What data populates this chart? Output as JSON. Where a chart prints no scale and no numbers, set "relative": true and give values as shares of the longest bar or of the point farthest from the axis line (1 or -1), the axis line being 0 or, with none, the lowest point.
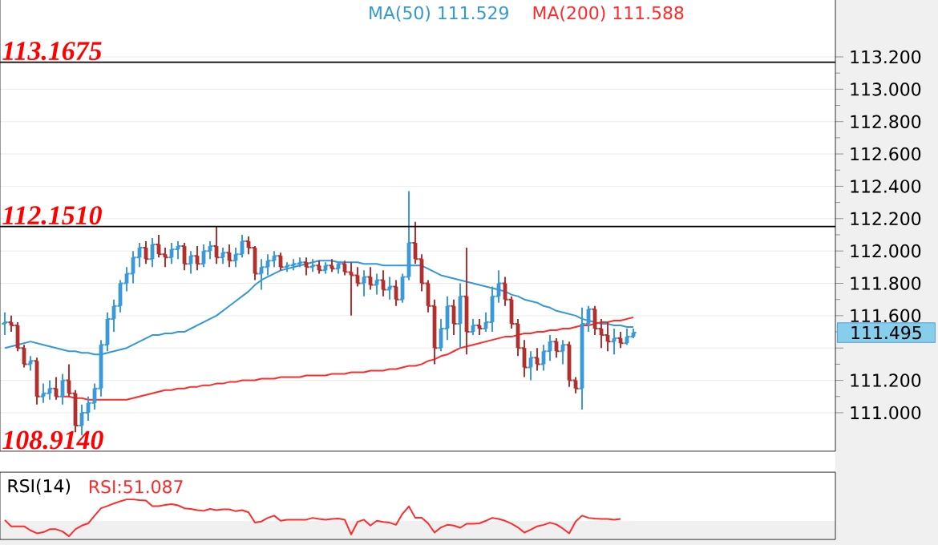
{
  "chart_data": [
    {
      "type": "candlestick",
      "legend": "top",
      "grid": "y",
      "categories": [
        null,
        null,
        null,
        null,
        null,
        null,
        null,
        null,
        null,
        null,
        null,
        null,
        null,
        null,
        null,
        null,
        null,
        null,
        null,
        null,
        null,
        null,
        null,
        null,
        null,
        null,
        null,
        null,
        null,
        null,
        null,
        null,
        null,
        null,
        null,
        null,
        null,
        null,
        null,
        null,
        null,
        null,
        null,
        null,
        null,
        null,
        null,
        null,
        null,
        null,
        null,
        null,
        null,
        null,
        null,
        null,
        null,
        null,
        null,
        null,
        null,
        null,
        null,
        null,
        null,
        null,
        null,
        null,
        null,
        null,
        null,
        null,
        null,
        null,
        null,
        null,
        null,
        null,
        null,
        null,
        null,
        null,
        null,
        null,
        null,
        null,
        null,
        null,
        null,
        null,
        null,
        null,
        null,
        null,
        null,
        null,
        null,
        null,
        null,
        null,
        null,
        null,
        null,
        null,
        null,
        null,
        null,
        null,
        null,
        null,
        null,
        null,
        null,
        null,
        null,
        null,
        null,
        null,
        null,
        null,
        null,
        null,
        null,
        null,
        null,
        null,
        null,
        null,
        null,
        null
      ],
      "ylim": [
        110.762,
        113.557
      ],
      "yticks": [
        {
          "value": 111.0,
          "label": "111.000"
        },
        {
          "value": 111.2,
          "label": "111.200"
        },
        {
          "value": 111.4,
          "label": null
        },
        {
          "value": 111.6,
          "label": "111.600"
        },
        {
          "value": 111.8,
          "label": "111.800"
        },
        {
          "value": 112.0,
          "label": "112.000"
        },
        {
          "value": 112.2,
          "label": "112.200"
        },
        {
          "value": 112.4,
          "label": "112.400"
        },
        {
          "value": 112.6,
          "label": "112.600"
        },
        {
          "value": 112.8,
          "label": "112.800"
        },
        {
          "value": 113.0,
          "label": "113.000"
        },
        {
          "value": 113.2,
          "label": "113.200"
        }
      ],
      "ref_lines": [
        {
          "axis": "y",
          "value": 113.1675,
          "label": "113.1675",
          "color": "#000000"
        },
        {
          "axis": "y",
          "value": 112.151,
          "label": "112.1510",
          "color": "#000000"
        }
      ],
      "annotations": [
        "108.9140",
        "111.495"
      ],
      "ohlc": [
        [
          111.55,
          111.62,
          111.48,
          111.56
        ],
        [
          111.56,
          111.6,
          111.5,
          111.54
        ],
        [
          111.54,
          111.56,
          111.38,
          111.4
        ],
        [
          111.4,
          111.42,
          111.28,
          111.3
        ],
        [
          111.3,
          111.35,
          111.26,
          111.32
        ],
        [
          111.32,
          111.34,
          111.05,
          111.1
        ],
        [
          111.1,
          111.18,
          111.06,
          111.12
        ],
        [
          111.12,
          111.2,
          111.08,
          111.15
        ],
        [
          111.15,
          111.22,
          111.08,
          111.1
        ],
        [
          111.1,
          111.24,
          111.05,
          111.2
        ],
        [
          111.2,
          111.3,
          111.1,
          111.12
        ],
        [
          111.12,
          111.14,
          110.88,
          110.92
        ],
        [
          110.92,
          111.05,
          110.86,
          111.0
        ],
        [
          111.0,
          111.1,
          110.95,
          111.06
        ],
        [
          111.06,
          111.18,
          111.02,
          111.15
        ],
        [
          111.15,
          111.45,
          111.1,
          111.42
        ],
        [
          111.42,
          111.62,
          111.38,
          111.58
        ],
        [
          111.58,
          111.7,
          111.5,
          111.66
        ],
        [
          111.66,
          111.82,
          111.62,
          111.8
        ],
        [
          111.8,
          111.9,
          111.75,
          111.86
        ],
        [
          111.86,
          112.0,
          111.8,
          111.96
        ],
        [
          111.96,
          112.05,
          111.9,
          112.02
        ],
        [
          112.02,
          112.06,
          111.92,
          111.95
        ],
        [
          111.95,
          112.08,
          111.9,
          112.04
        ],
        [
          112.04,
          112.1,
          111.96,
          111.98
        ],
        [
          111.98,
          112.02,
          111.9,
          111.96
        ],
        [
          111.96,
          112.05,
          111.92,
          112.01
        ],
        [
          112.01,
          112.06,
          111.95,
          112.03
        ],
        [
          112.03,
          112.05,
          111.88,
          111.92
        ],
        [
          111.92,
          112.0,
          111.86,
          111.97
        ],
        [
          111.97,
          112.03,
          111.88,
          111.92
        ],
        [
          111.92,
          112.04,
          111.9,
          112.0
        ],
        [
          112.0,
          112.06,
          111.95,
          112.03
        ],
        [
          112.03,
          112.15,
          111.92,
          111.96
        ],
        [
          111.96,
          112.02,
          111.92,
          111.99
        ],
        [
          111.99,
          112.04,
          111.9,
          111.94
        ],
        [
          111.94,
          112.02,
          111.9,
          111.98
        ],
        [
          111.98,
          112.1,
          111.96,
          112.06
        ],
        [
          112.06,
          112.09,
          111.98,
          112.02
        ],
        [
          112.02,
          112.03,
          111.82,
          111.86
        ],
        [
          111.86,
          111.95,
          111.76,
          111.9
        ],
        [
          111.9,
          111.98,
          111.85,
          111.94
        ],
        [
          111.94,
          112.0,
          111.9,
          111.97
        ],
        [
          111.97,
          111.99,
          111.88,
          111.9
        ],
        [
          111.9,
          111.93,
          111.87,
          111.91
        ],
        [
          111.91,
          111.95,
          111.88,
          111.92
        ],
        [
          111.92,
          111.96,
          111.9,
          111.93
        ],
        [
          111.93,
          111.96,
          111.85,
          111.9
        ],
        [
          111.9,
          111.95,
          111.87,
          111.91
        ],
        [
          111.91,
          111.94,
          111.86,
          111.88
        ],
        [
          111.88,
          111.93,
          111.86,
          111.91
        ],
        [
          111.91,
          111.95,
          111.87,
          111.89
        ],
        [
          111.89,
          111.93,
          111.86,
          111.92
        ],
        [
          111.92,
          111.94,
          111.85,
          111.87
        ],
        [
          111.87,
          111.93,
          111.6,
          111.85
        ],
        [
          111.85,
          111.9,
          111.78,
          111.8
        ],
        [
          111.8,
          111.88,
          111.72,
          111.84
        ],
        [
          111.84,
          111.9,
          111.76,
          111.79
        ],
        [
          111.79,
          111.86,
          111.73,
          111.82
        ],
        [
          111.82,
          111.88,
          111.72,
          111.76
        ],
        [
          111.76,
          111.84,
          111.7,
          111.78
        ],
        [
          111.78,
          111.82,
          111.66,
          111.7
        ],
        [
          111.7,
          111.86,
          111.68,
          111.84
        ],
        [
          111.84,
          112.37,
          111.82,
          112.05
        ],
        [
          112.05,
          112.18,
          111.92,
          111.95
        ],
        [
          111.95,
          111.98,
          111.75,
          111.8
        ],
        [
          111.8,
          111.82,
          111.62,
          111.66
        ],
        [
          111.66,
          111.7,
          111.3,
          111.4
        ],
        [
          111.4,
          111.58,
          111.38,
          111.52
        ],
        [
          111.52,
          111.72,
          111.45,
          111.66
        ],
        [
          111.66,
          111.7,
          111.48,
          111.55
        ],
        [
          111.55,
          111.8,
          111.4,
          111.72
        ],
        [
          111.72,
          112.02,
          111.36,
          111.5
        ],
        [
          111.5,
          111.58,
          111.48,
          111.54
        ],
        [
          111.54,
          111.58,
          111.48,
          111.52
        ],
        [
          111.52,
          111.62,
          111.5,
          111.56
        ],
        [
          111.56,
          111.78,
          111.5,
          111.72
        ],
        [
          111.72,
          111.88,
          111.68,
          111.8
        ],
        [
          111.8,
          111.84,
          111.66,
          111.7
        ],
        [
          111.7,
          111.72,
          111.52,
          111.55
        ],
        [
          111.55,
          111.58,
          111.35,
          111.4
        ],
        [
          111.4,
          111.45,
          111.22,
          111.28
        ],
        [
          111.28,
          111.38,
          111.2,
          111.34
        ],
        [
          111.34,
          111.4,
          111.26,
          111.3
        ],
        [
          111.3,
          111.42,
          111.26,
          111.38
        ],
        [
          111.38,
          111.48,
          111.32,
          111.44
        ],
        [
          111.44,
          111.46,
          111.34,
          111.38
        ],
        [
          111.38,
          111.45,
          111.3,
          111.42
        ],
        [
          111.42,
          111.44,
          111.16,
          111.2
        ],
        [
          111.2,
          111.22,
          111.12,
          111.15
        ],
        [
          111.15,
          111.65,
          111.02,
          111.55
        ],
        [
          111.55,
          111.66,
          111.5,
          111.64
        ],
        [
          111.64,
          111.66,
          111.48,
          111.52
        ],
        [
          111.52,
          111.58,
          111.4,
          111.48
        ],
        [
          111.48,
          111.56,
          111.38,
          111.44
        ],
        [
          111.44,
          111.52,
          111.36,
          111.46
        ],
        [
          111.46,
          111.5,
          111.4,
          111.43
        ],
        [
          111.43,
          111.52,
          111.42,
          111.47
        ],
        [
          111.47,
          111.52,
          111.46,
          111.495
        ],
        null,
        null,
        null,
        null,
        null,
        null,
        null,
        null,
        null,
        null,
        null,
        null,
        null,
        null,
        null,
        null,
        null,
        null,
        null,
        null,
        null,
        null,
        null,
        null,
        null,
        null,
        null,
        null,
        null,
        null,
        null
      ],
      "colors": [
        "#3a9ad9",
        "#b0302e",
        "#b0302e",
        "#b0302e",
        "#3a9ad9",
        "#b0302e",
        "#3a9ad9",
        "#3a9ad9",
        "#b0302e",
        "#3a9ad9",
        "#b0302e",
        "#b0302e",
        "#3a9ad9",
        "#3a9ad9",
        "#3a9ad9",
        "#3a9ad9",
        "#3a9ad9",
        "#3a9ad9",
        "#3a9ad9",
        "#3a9ad9",
        "#3a9ad9",
        "#3a9ad9",
        "#b0302e",
        "#3a9ad9",
        "#b0302e",
        "#b0302e",
        "#3a9ad9",
        "#3a9ad9",
        "#b0302e",
        "#3a9ad9",
        "#b0302e",
        "#3a9ad9",
        "#3a9ad9",
        "#b0302e",
        "#3a9ad9",
        "#b0302e",
        "#3a9ad9",
        "#3a9ad9",
        "#b0302e",
        "#b0302e",
        "#3a9ad9",
        "#3a9ad9",
        "#3a9ad9",
        "#b0302e",
        "#3a9ad9",
        "#3a9ad9",
        "#3a9ad9",
        "#b0302e",
        "#3a9ad9",
        "#b0302e",
        "#3a9ad9",
        "#b0302e",
        "#3a9ad9",
        "#b0302e",
        "#b0302e",
        "#b0302e",
        "#3a9ad9",
        "#b0302e",
        "#3a9ad9",
        "#b0302e",
        "#3a9ad9",
        "#b0302e",
        "#3a9ad9",
        "#3a9ad9",
        "#b0302e",
        "#b0302e",
        "#b0302e",
        "#b0302e",
        "#3a9ad9",
        "#3a9ad9",
        "#b0302e",
        "#3a9ad9",
        "#b0302e",
        "#3a9ad9",
        "#b0302e",
        "#3a9ad9",
        "#3a9ad9",
        "#3a9ad9",
        "#b0302e",
        "#b0302e",
        "#b0302e",
        "#b0302e",
        "#3a9ad9",
        "#b0302e",
        "#3a9ad9",
        "#3a9ad9",
        "#b0302e",
        "#3a9ad9",
        "#b0302e",
        "#b0302e",
        "#3a9ad9",
        "#3a9ad9",
        "#b0302e",
        "#b0302e",
        "#b0302e",
        "#3a9ad9",
        "#b0302e",
        "#3a9ad9",
        "#3a9ad9",
        null,
        null,
        null,
        null,
        null,
        null,
        null,
        null,
        null,
        null,
        null,
        null,
        null,
        null,
        null,
        null,
        null,
        null,
        null,
        null,
        null,
        null,
        null,
        null,
        null,
        null,
        null,
        null,
        null,
        null,
        null
      ],
      "series": [
        {
          "name": "MA(50) 111.529",
          "type": "line",
          "color": "#3399d6",
          "values": [
            111.4,
            111.41,
            111.42,
            111.43,
            111.44,
            111.43,
            111.42,
            111.41,
            111.4,
            111.39,
            111.38,
            111.38,
            111.37,
            111.37,
            111.36,
            111.36,
            111.37,
            111.38,
            111.39,
            111.4,
            111.42,
            111.44,
            111.46,
            111.48,
            111.48,
            111.49,
            111.49,
            111.5,
            111.5,
            111.52,
            111.54,
            111.56,
            111.58,
            111.6,
            111.63,
            111.66,
            111.69,
            111.72,
            111.75,
            111.79,
            111.82,
            111.84,
            111.86,
            111.88,
            111.89,
            111.9,
            111.91,
            111.92,
            111.93,
            111.94,
            111.94,
            111.94,
            111.93,
            111.93,
            111.93,
            111.93,
            111.92,
            111.92,
            111.92,
            111.91,
            111.91,
            111.91,
            111.91,
            111.91,
            111.91,
            111.91,
            111.89,
            111.87,
            111.85,
            111.84,
            111.83,
            111.82,
            111.81,
            111.8,
            111.79,
            111.78,
            111.77,
            111.76,
            111.75,
            111.73,
            111.72,
            111.7,
            111.69,
            111.68,
            111.66,
            111.65,
            111.63,
            111.62,
            111.61,
            111.6,
            111.58,
            111.57,
            111.56,
            111.55,
            111.55,
            111.54,
            111.54,
            111.53,
            111.53,
            null,
            null,
            null,
            null,
            null,
            null,
            null,
            null,
            null,
            null,
            null,
            null,
            null,
            null,
            null,
            null,
            null,
            null,
            null,
            null,
            null,
            null,
            null,
            null,
            null,
            null,
            null,
            null,
            null,
            null,
            null
          ]
        },
        {
          "name": "MA(200) 111.588",
          "type": "line",
          "color": "#ff2a2a",
          "values": [
            null,
            null,
            null,
            null,
            null,
            null,
            null,
            null,
            null,
            111.1,
            111.1,
            111.09,
            111.09,
            111.08,
            111.08,
            111.08,
            111.08,
            111.08,
            111.08,
            111.08,
            111.09,
            111.1,
            111.11,
            111.12,
            111.13,
            111.14,
            111.14,
            111.15,
            111.15,
            111.16,
            111.16,
            111.17,
            111.17,
            111.18,
            111.18,
            111.19,
            111.19,
            111.2,
            111.2,
            111.2,
            111.21,
            111.21,
            111.21,
            111.22,
            111.22,
            111.22,
            111.22,
            111.23,
            111.23,
            111.23,
            111.23,
            111.24,
            111.24,
            111.24,
            111.25,
            111.25,
            111.25,
            111.26,
            111.26,
            111.26,
            111.27,
            111.27,
            111.28,
            111.29,
            111.29,
            111.3,
            111.32,
            111.33,
            111.35,
            111.36,
            111.38,
            111.4,
            111.41,
            111.42,
            111.43,
            111.44,
            111.45,
            111.46,
            111.47,
            111.47,
            111.48,
            111.49,
            111.49,
            111.5,
            111.5,
            111.51,
            111.51,
            111.52,
            111.52,
            111.53,
            111.54,
            111.54,
            111.55,
            111.56,
            111.56,
            111.57,
            111.57,
            111.58,
            111.59,
            null,
            null,
            null,
            null,
            null,
            null,
            null,
            null,
            null,
            null,
            null,
            null,
            null,
            null,
            null,
            null,
            null,
            null,
            null,
            null,
            null,
            null,
            null,
            null,
            null,
            null,
            null,
            null,
            null,
            null,
            null
          ]
        }
      ]
    },
    {
      "type": "line",
      "title": "RSI(14)",
      "relative": true,
      "legend": "top left",
      "categories": [
        null,
        null,
        null,
        null,
        null,
        null,
        null,
        null,
        null,
        null,
        null,
        null,
        null,
        null,
        null,
        null,
        null,
        null,
        null,
        null,
        null,
        null,
        null,
        null,
        null,
        null,
        null,
        null,
        null,
        null,
        null,
        null,
        null,
        null,
        null,
        null,
        null,
        null,
        null,
        null,
        null,
        null,
        null,
        null,
        null,
        null,
        null,
        null,
        null,
        null,
        null,
        null,
        null,
        null,
        null,
        null,
        null,
        null,
        null,
        null,
        null,
        null,
        null,
        null,
        null,
        null,
        null,
        null,
        null,
        null,
        null,
        null,
        null,
        null,
        null,
        null,
        null,
        null,
        null,
        null,
        null,
        null,
        null,
        null,
        null,
        null,
        null,
        null,
        null,
        null,
        null,
        null,
        null,
        null,
        null,
        null,
        null,
        null,
        null,
        null,
        null,
        null,
        null,
        null,
        null,
        null,
        null,
        null,
        null,
        null,
        null,
        null,
        null,
        null,
        null,
        null,
        null,
        null,
        null,
        null,
        null,
        null,
        null,
        null,
        null,
        null,
        null,
        null,
        null,
        null
      ],
      "series": [
        {
          "name": "RSI:51.087",
          "color": "#ff2a2a",
          "values": [
            0.44,
            0.27,
            0.27,
            0.27,
            0.16,
            0.08,
            0.11,
            0.19,
            0.19,
            0.13,
            0.0,
            0.19,
            0.29,
            0.35,
            0.56,
            0.76,
            0.82,
            0.89,
            0.95,
            1.0,
            1.0,
            0.98,
            0.97,
            0.82,
            0.82,
            0.85,
            0.87,
            0.84,
            0.76,
            0.74,
            0.71,
            0.69,
            0.74,
            0.71,
            0.73,
            0.73,
            0.68,
            0.71,
            0.65,
            0.37,
            0.4,
            0.5,
            0.56,
            0.42,
            0.45,
            0.45,
            0.45,
            0.45,
            0.5,
            0.47,
            0.45,
            0.47,
            0.48,
            0.45,
            0.05,
            0.39,
            0.45,
            0.29,
            0.42,
            0.39,
            0.37,
            0.31,
            0.61,
            0.81,
            0.5,
            0.5,
            0.35,
            0.1,
            0.24,
            0.31,
            0.29,
            0.23,
            0.34,
            0.34,
            0.35,
            0.42,
            0.5,
            0.47,
            0.42,
            0.34,
            0.24,
            0.1,
            0.18,
            0.27,
            0.31,
            0.37,
            0.32,
            0.21,
            0.08,
            0.4,
            0.56,
            0.5,
            0.48,
            0.47,
            0.47,
            0.45,
            0.47,
            null,
            null,
            null,
            null,
            null,
            null,
            null,
            null,
            null,
            null,
            null,
            null,
            null,
            null,
            null,
            null,
            null,
            null,
            null,
            null,
            null,
            null,
            null,
            null,
            null,
            null,
            null,
            null,
            null,
            null,
            null,
            null,
            null
          ]
        }
      ]
    }
  ]
}
